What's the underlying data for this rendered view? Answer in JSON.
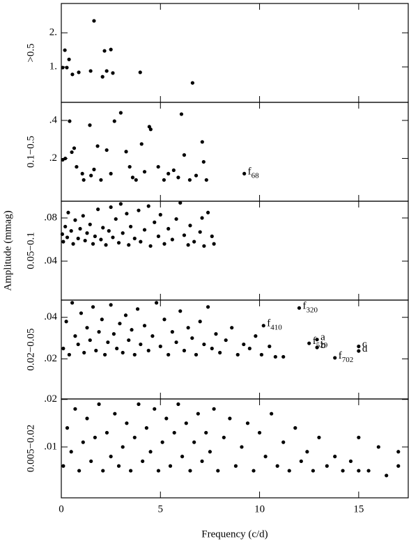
{
  "figure": {
    "xlabel": "Frequency (c/d)",
    "ylabel": "Amplitude (mmag)"
  },
  "chart_data": [
    {
      "type": "scatter",
      "ylabel": ">0.5",
      "xlim": [
        0,
        17.5
      ],
      "xticks": [
        0,
        5,
        10,
        15
      ],
      "ylim": [
        -0.04,
        2.86
      ],
      "yticks": [
        {
          "value": 1,
          "label": "1."
        },
        {
          "value": 2,
          "label": "2."
        }
      ],
      "color": "#000000",
      "x": [
        0.07,
        0.18,
        0.28,
        0.39,
        0.56,
        0.88,
        1.48,
        1.65,
        2.08,
        2.18,
        2.29,
        2.5,
        2.6,
        3.98,
        6.62
      ],
      "values": [
        0.98,
        1.49,
        0.98,
        1.22,
        0.78,
        0.84,
        0.88,
        2.35,
        0.71,
        1.47,
        0.88,
        1.51,
        0.82,
        0.84,
        0.53
      ]
    },
    {
      "type": "scatter",
      "ylabel": "0.1−0.5",
      "xlim": [
        0,
        17.5
      ],
      "xticks": [
        0,
        5,
        10,
        15
      ],
      "ylim": [
        -0.025,
        0.495
      ],
      "yticks": [
        {
          "value": 0.2,
          "label": ".2"
        },
        {
          "value": 0.4,
          "label": ".4"
        }
      ],
      "color": "#000000",
      "x": [
        0.07,
        0.2,
        0.42,
        0.53,
        0.65,
        0.77,
        1.06,
        1.13,
        1.44,
        1.65,
        1.83,
        2.0,
        2.29,
        2.68,
        3.0,
        3.27,
        3.45,
        3.77,
        4.05,
        4.44,
        4.51,
        4.89,
        5.18,
        5.67,
        6.06,
        6.2,
        6.48,
        7.11,
        7.18,
        7.32,
        1.5,
        2.5,
        3.6,
        4.2,
        5.4,
        5.9,
        6.8
      ],
      "values": [
        0.193,
        0.2,
        0.396,
        0.233,
        0.254,
        0.156,
        0.12,
        0.087,
        0.375,
        0.142,
        0.265,
        0.087,
        0.244,
        0.396,
        0.44,
        0.236,
        0.156,
        0.087,
        0.276,
        0.367,
        0.353,
        0.156,
        0.087,
        0.138,
        0.433,
        0.218,
        0.087,
        0.287,
        0.182,
        0.087,
        0.11,
        0.12,
        0.1,
        0.13,
        0.12,
        0.1,
        0.11
      ],
      "annotations": [
        {
          "text": "f",
          "sub": "68",
          "x": 9.23,
          "y": 0.12
        }
      ]
    },
    {
      "type": "scatter",
      "ylabel": "0.05−0.1",
      "xlim": [
        0,
        17.5
      ],
      "xticks": [
        0,
        5,
        10,
        15
      ],
      "ylim": [
        0.0039,
        0.0955
      ],
      "yticks": [
        {
          "value": 0.04,
          "label": ".04"
        },
        {
          "value": 0.08,
          "label": ".08"
        }
      ],
      "color": "#000000",
      "x": [
        0.05,
        0.1,
        0.2,
        0.3,
        0.35,
        0.5,
        0.6,
        0.7,
        0.85,
        0.95,
        1.1,
        1.2,
        1.3,
        1.45,
        1.6,
        1.7,
        1.85,
        2.0,
        2.1,
        2.25,
        2.4,
        2.5,
        2.6,
        2.75,
        2.9,
        3.0,
        3.1,
        3.3,
        3.4,
        3.5,
        3.7,
        3.9,
        4.0,
        4.2,
        4.4,
        4.5,
        4.7,
        4.9,
        5.0,
        5.2,
        5.4,
        5.6,
        5.8,
        6.0,
        6.2,
        6.4,
        6.5,
        6.7,
        7.0,
        7.1,
        7.2,
        7.4,
        7.6,
        7.7
      ],
      "values": [
        0.065,
        0.058,
        0.072,
        0.062,
        0.085,
        0.068,
        0.056,
        0.078,
        0.061,
        0.07,
        0.082,
        0.059,
        0.066,
        0.074,
        0.056,
        0.063,
        0.088,
        0.06,
        0.071,
        0.055,
        0.068,
        0.09,
        0.062,
        0.079,
        0.057,
        0.093,
        0.066,
        0.084,
        0.055,
        0.072,
        0.061,
        0.087,
        0.058,
        0.069,
        0.091,
        0.054,
        0.076,
        0.063,
        0.083,
        0.056,
        0.07,
        0.06,
        0.079,
        0.094,
        0.064,
        0.055,
        0.073,
        0.058,
        0.067,
        0.08,
        0.054,
        0.085,
        0.063,
        0.056
      ]
    },
    {
      "type": "scatter",
      "ylabel": "0.02−0.05",
      "xlim": [
        0,
        17.5
      ],
      "xticks": [
        0,
        5,
        10,
        15
      ],
      "ylim": [
        0.0007,
        0.0483
      ],
      "yticks": [
        {
          "value": 0.02,
          "label": ".02"
        },
        {
          "value": 0.04,
          "label": ".04"
        }
      ],
      "color": "#000000",
      "x": [
        0.1,
        0.25,
        0.4,
        0.55,
        0.7,
        0.85,
        1.0,
        1.15,
        1.3,
        1.45,
        1.6,
        1.75,
        1.9,
        2.05,
        2.2,
        2.35,
        2.5,
        2.65,
        2.8,
        2.95,
        3.1,
        3.25,
        3.4,
        3.55,
        3.7,
        3.85,
        4.0,
        4.2,
        4.4,
        4.6,
        4.8,
        5.0,
        5.2,
        5.4,
        5.6,
        5.8,
        6.0,
        6.2,
        6.4,
        6.6,
        6.8,
        7.0,
        7.2,
        7.4,
        7.6,
        7.8,
        8.0,
        8.3,
        8.6,
        8.9,
        9.2,
        9.5,
        9.8,
        10.1,
        10.5,
        10.8,
        11.2
      ],
      "values": [
        0.025,
        0.038,
        0.022,
        0.047,
        0.031,
        0.027,
        0.042,
        0.023,
        0.035,
        0.029,
        0.045,
        0.024,
        0.033,
        0.039,
        0.022,
        0.028,
        0.046,
        0.032,
        0.025,
        0.037,
        0.023,
        0.041,
        0.029,
        0.034,
        0.022,
        0.044,
        0.027,
        0.036,
        0.024,
        0.031,
        0.047,
        0.026,
        0.039,
        0.022,
        0.033,
        0.028,
        0.043,
        0.024,
        0.035,
        0.03,
        0.022,
        0.038,
        0.027,
        0.045,
        0.025,
        0.032,
        0.023,
        0.029,
        0.035,
        0.022,
        0.027,
        0.025,
        0.031,
        0.022,
        0.026,
        0.021,
        0.021
      ],
      "annotations": [
        {
          "text": "f",
          "sub": "320",
          "x": 12.0,
          "y": 0.0445
        },
        {
          "text": "f",
          "sub": "410",
          "x": 10.2,
          "y": 0.036
        },
        {
          "text": "a",
          "x": 12.9,
          "y": 0.0293
        },
        {
          "text": "b",
          "x": 12.9,
          "y": 0.0255
        },
        {
          "text": "f",
          "sub": "529",
          "x": 12.5,
          "y": 0.0275
        },
        {
          "text": "f",
          "sub": "702",
          "x": 13.8,
          "y": 0.0205
        },
        {
          "text": "c",
          "x": 15.0,
          "y": 0.026
        },
        {
          "text": "d",
          "x": 15.0,
          "y": 0.0238
        }
      ]
    },
    {
      "type": "scatter",
      "ylabel": "0.005−0.02",
      "xlim": [
        0,
        17.5
      ],
      "xticks": [
        0,
        5,
        10,
        15
      ],
      "ylim": [
        -0.0007,
        0.0201
      ],
      "yticks": [
        {
          "value": 0.01,
          "label": ".01"
        },
        {
          "value": 0.02,
          "label": ".02"
        }
      ],
      "color": "#000000",
      "x": [
        0.1,
        0.3,
        0.5,
        0.7,
        0.9,
        1.1,
        1.3,
        1.5,
        1.7,
        1.9,
        2.1,
        2.3,
        2.5,
        2.7,
        2.9,
        3.1,
        3.3,
        3.5,
        3.7,
        3.9,
        4.1,
        4.3,
        4.5,
        4.7,
        4.9,
        5.1,
        5.3,
        5.5,
        5.7,
        5.9,
        6.1,
        6.3,
        6.5,
        6.7,
        6.9,
        7.1,
        7.3,
        7.5,
        7.7,
        7.9,
        8.2,
        8.5,
        8.8,
        9.1,
        9.4,
        9.7,
        10.0,
        10.3,
        10.6,
        10.9,
        11.2,
        11.5,
        11.8,
        12.1,
        12.4,
        12.7,
        13.0,
        13.4,
        13.8,
        14.2,
        14.6,
        15.0,
        15.0,
        15.5,
        16.0,
        16.4,
        17.0,
        17.0
      ],
      "values": [
        0.006,
        0.014,
        0.009,
        0.018,
        0.005,
        0.011,
        0.016,
        0.007,
        0.012,
        0.019,
        0.005,
        0.013,
        0.008,
        0.017,
        0.006,
        0.01,
        0.015,
        0.005,
        0.012,
        0.019,
        0.007,
        0.014,
        0.009,
        0.018,
        0.005,
        0.011,
        0.016,
        0.006,
        0.013,
        0.019,
        0.008,
        0.015,
        0.005,
        0.011,
        0.017,
        0.007,
        0.013,
        0.009,
        0.018,
        0.005,
        0.012,
        0.016,
        0.006,
        0.01,
        0.015,
        0.005,
        0.013,
        0.008,
        0.017,
        0.006,
        0.011,
        0.005,
        0.014,
        0.007,
        0.009,
        0.005,
        0.012,
        0.006,
        0.008,
        0.005,
        0.007,
        0.012,
        0.005,
        0.005,
        0.01,
        0.004,
        0.009,
        0.006
      ]
    }
  ]
}
